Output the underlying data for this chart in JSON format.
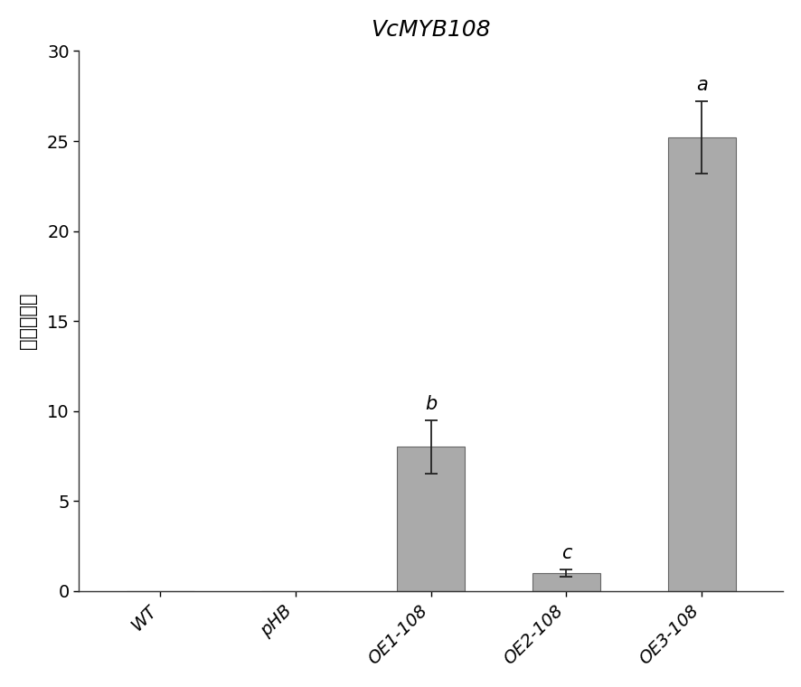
{
  "title": "VcMYB108",
  "ylabel": "相对表达量",
  "categories": [
    "WT",
    "pHB",
    "OE1-108",
    "OE2-108",
    "OE3-108"
  ],
  "values": [
    0.0,
    0.0,
    8.0,
    1.0,
    25.2
  ],
  "errors": [
    0.0,
    0.0,
    1.5,
    0.2,
    2.0
  ],
  "significance": [
    "",
    "",
    "b",
    "c",
    "a"
  ],
  "bar_color": "#AAAAAA",
  "bar_edgecolor": "#666666",
  "ylim": [
    0,
    30
  ],
  "yticks": [
    0,
    5,
    10,
    15,
    20,
    25,
    30
  ],
  "figsize": [
    8.87,
    7.6
  ],
  "dpi": 100,
  "bar_width": 0.5,
  "title_fontsize": 18,
  "ylabel_fontsize": 15,
  "tick_fontsize": 14,
  "sig_fontsize": 15,
  "xtick_fontsize": 14
}
